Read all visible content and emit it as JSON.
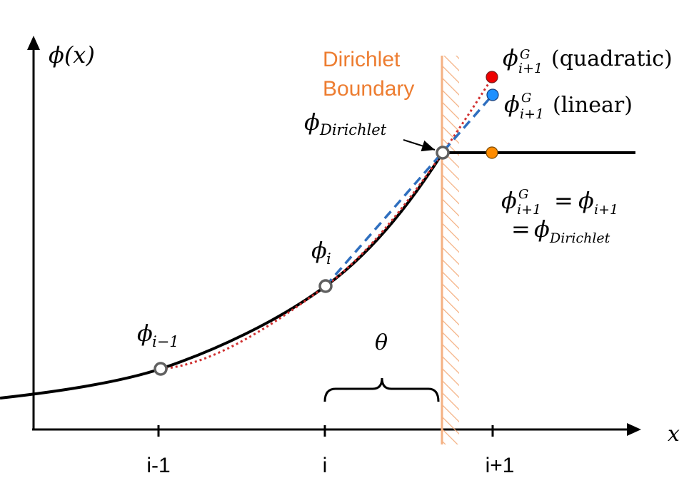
{
  "colors": {
    "axis": "#000000",
    "curve": "#000000",
    "boundary": "#f4b183",
    "boundary_text": "#ed7d31",
    "quadratic": "#d03030",
    "linear": "#2f6fbf",
    "ghost_quadratic_point": "#ee0000",
    "ghost_linear_point": "#1e90ff",
    "dirichlet_extension_point": "#ff8c00",
    "node_marker": "#606060"
  },
  "axes": {
    "y_label": "ϕ(x)",
    "x_label": "x",
    "ticks": [
      "i-1",
      "i",
      "i+1"
    ]
  },
  "boundary": {
    "label_line1": "Dirichlet",
    "label_line2": "Boundary"
  },
  "labels": {
    "phi_i_minus_1": {
      "base": "ϕ",
      "sub": "i−1"
    },
    "phi_i": {
      "base": "ϕ",
      "sub": "i"
    },
    "phi_dirichlet": {
      "base": "ϕ",
      "sub": "Dirichlet"
    },
    "ghost_quadratic": {
      "base": "ϕ",
      "sub": "i+1",
      "sup": "G",
      "suffix": "(quadratic)"
    },
    "ghost_linear": {
      "base": "ϕ",
      "sub": "i+1",
      "sup": "G",
      "suffix": "(linear)"
    },
    "theta": "θ",
    "equation_line1": {
      "lhs_base": "ϕ",
      "lhs_sub": "i+1",
      "lhs_sup": "G",
      "eq": "=",
      "rhs_base": "ϕ",
      "rhs_sub": "i+1"
    },
    "equation_line2": {
      "eq": "=",
      "rhs_base": "ϕ",
      "rhs_sub": "Dirichlet"
    }
  }
}
